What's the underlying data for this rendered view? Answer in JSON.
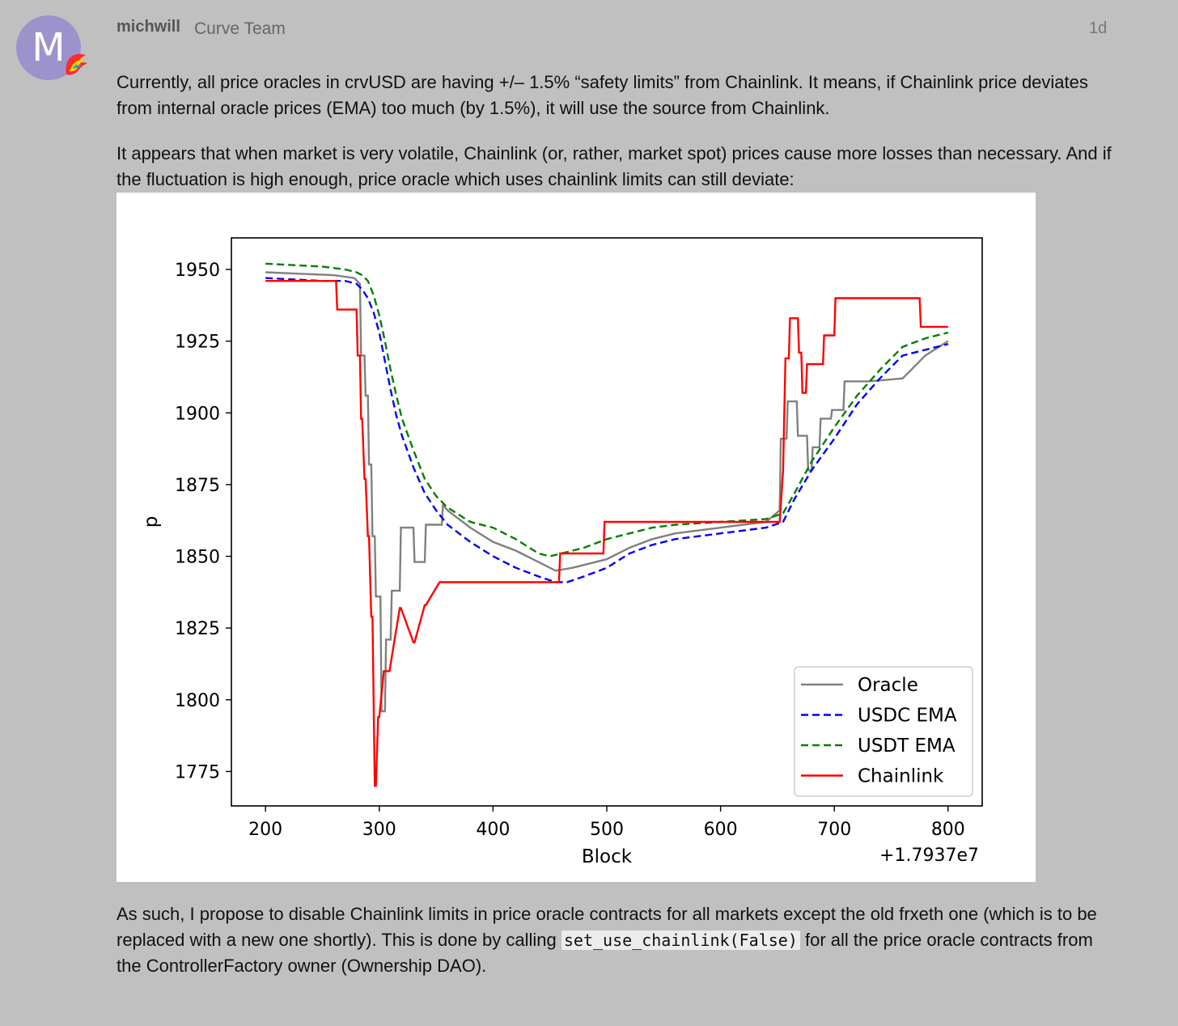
{
  "post": {
    "avatar_letter": "M",
    "username": "michwill",
    "user_title": "Curve Team",
    "date": "1d",
    "paragraph1": "Currently, all price oracles in crvUSD are having +/– 1.5% “safety limits” from Chainlink. It means, if Chainlink price deviates from internal oracle prices (EMA) too much (by 1.5%), it will use the source from Chainlink.",
    "paragraph2": "It appears that when market is very volatile, Chainlink (or, rather, market spot) prices cause more losses than necessary. And if the fluctuation is high enough, price oracle which uses chainlink limits can still deviate:",
    "paragraph3_before": "As such, I propose to disable Chainlink limits in price oracle contracts for all markets except the old frxeth one (which is to be replaced with a new one shortly). This is done by calling ",
    "paragraph3_code": "set_use_chainlink(False)",
    "paragraph3_after": " for all the price oracle contracts from the ControllerFactory owner (Ownership DAO)."
  },
  "chart_data": {
    "type": "line",
    "xlabel": "Block",
    "ylabel": "p",
    "x_offset_label": "+1.7937e7",
    "xlim": [
      170,
      830
    ],
    "ylim": [
      1763,
      1961
    ],
    "xticks": [
      200,
      300,
      400,
      500,
      600,
      700,
      800
    ],
    "yticks": [
      1775,
      1800,
      1825,
      1850,
      1875,
      1900,
      1925,
      1950
    ],
    "grid": false,
    "legend_position": "lower right",
    "series": [
      {
        "name": "Oracle",
        "color": "#808080",
        "style": "solid",
        "x": [
          200,
          260,
          278,
          283,
          284,
          287,
          288,
          290,
          291,
          293,
          294,
          296,
          297,
          301,
          302,
          305,
          306,
          310,
          311,
          318,
          319,
          330,
          331,
          340,
          341,
          355,
          356,
          360,
          380,
          400,
          420,
          440,
          455,
          470,
          500,
          520,
          540,
          560,
          600,
          640,
          652,
          653,
          658,
          659,
          667,
          668,
          676,
          677,
          680,
          681,
          687,
          688,
          697,
          698,
          708,
          709,
          730,
          760,
          780,
          800
        ],
        "y": [
          1949,
          1948,
          1947,
          1945,
          1920,
          1920,
          1906,
          1906,
          1882,
          1882,
          1857,
          1857,
          1836,
          1836,
          1796,
          1796,
          1821,
          1821,
          1838,
          1838,
          1860,
          1860,
          1848,
          1848,
          1861,
          1861,
          1868,
          1866,
          1860,
          1855,
          1852,
          1848,
          1845,
          1846,
          1849,
          1853,
          1856,
          1858,
          1860,
          1862,
          1866,
          1891,
          1891,
          1904,
          1904,
          1892,
          1892,
          1880,
          1880,
          1888,
          1888,
          1898,
          1898,
          1901,
          1901,
          1911,
          1911,
          1912,
          1920,
          1925
        ]
      },
      {
        "name": "USDC EMA",
        "color": "#0000ff",
        "style": "dashed",
        "x": [
          200,
          250,
          270,
          280,
          285,
          290,
          295,
          300,
          305,
          310,
          315,
          320,
          330,
          340,
          350,
          360,
          380,
          400,
          420,
          440,
          455,
          465,
          480,
          500,
          520,
          540,
          560,
          600,
          640,
          655,
          665,
          680,
          700,
          720,
          740,
          760,
          780,
          800
        ],
        "y": [
          1947,
          1946,
          1946,
          1945,
          1943,
          1940,
          1935,
          1928,
          1918,
          1908,
          1899,
          1892,
          1881,
          1872,
          1866,
          1861,
          1855,
          1850,
          1846,
          1843,
          1841,
          1841,
          1843,
          1846,
          1851,
          1854,
          1856,
          1858,
          1860,
          1862,
          1870,
          1880,
          1891,
          1903,
          1912,
          1920,
          1922,
          1924
        ]
      },
      {
        "name": "USDT EMA",
        "color": "#008000",
        "style": "dashed",
        "x": [
          200,
          250,
          270,
          280,
          285,
          290,
          295,
          300,
          305,
          310,
          315,
          320,
          330,
          340,
          350,
          360,
          380,
          400,
          420,
          440,
          450,
          460,
          480,
          500,
          520,
          540,
          560,
          600,
          640,
          655,
          665,
          680,
          700,
          720,
          740,
          760,
          780,
          800
        ],
        "y": [
          1952,
          1951,
          1950,
          1949,
          1948,
          1946,
          1941,
          1934,
          1925,
          1915,
          1906,
          1898,
          1887,
          1877,
          1871,
          1867,
          1862,
          1860,
          1856,
          1851,
          1850,
          1851,
          1853,
          1856,
          1858,
          1860,
          1861,
          1862,
          1863,
          1865,
          1872,
          1883,
          1895,
          1906,
          1915,
          1923,
          1926,
          1928
        ]
      },
      {
        "name": "Chainlink",
        "color": "#ff0000",
        "style": "solid",
        "x": [
          200,
          262,
          263,
          280,
          281,
          283,
          284,
          285,
          287,
          288,
          290,
          291,
          293,
          294,
          296,
          297,
          299,
          300,
          304,
          305,
          308,
          309,
          318,
          319,
          330,
          331,
          340,
          341,
          353,
          354,
          400,
          455,
          458,
          459,
          497,
          498,
          650,
          652,
          655,
          657,
          660,
          661,
          668,
          669,
          671,
          672,
          675,
          676,
          680,
          681,
          690,
          691,
          700,
          701,
          706,
          707,
          775,
          776,
          800
        ],
        "y": [
          1946,
          1946,
          1936,
          1936,
          1920,
          1920,
          1898,
          1898,
          1877,
          1877,
          1857,
          1857,
          1829,
          1829,
          1770,
          1770,
          1794,
          1794,
          1810,
          1810,
          1810,
          1810,
          1832,
          1832,
          1820,
          1820,
          1833,
          1833,
          1841,
          1841,
          1841,
          1841,
          1841,
          1851,
          1851,
          1862,
          1862,
          1862,
          1880,
          1919,
          1919,
          1933,
          1933,
          1921,
          1921,
          1907,
          1907,
          1917,
          1917,
          1917,
          1917,
          1927,
          1927,
          1940,
          1940,
          1940,
          1940,
          1930,
          1930
        ]
      }
    ]
  }
}
